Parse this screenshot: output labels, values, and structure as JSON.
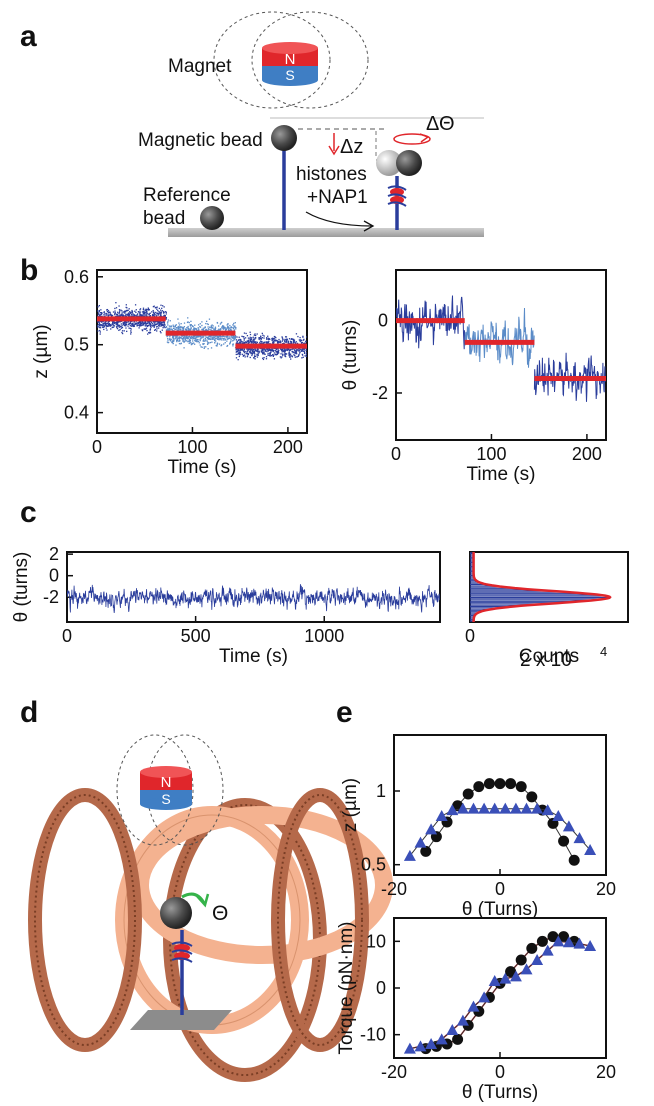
{
  "panels": {
    "a": {
      "letter": "a",
      "magnet_label": "Magnet",
      "magnet_n": "N",
      "magnet_s": "S",
      "magnetic_bead_label": "Magnetic bead",
      "delta_z": "Δz",
      "delta_theta": "ΔΘ",
      "histones_line1": "histones",
      "histones_line2": "+NAP1",
      "reference_line1": "Reference",
      "reference_line2": "bead"
    },
    "b": {
      "letter": "b"
    },
    "c": {
      "letter": "c",
      "count_multiplier": "2 x 10",
      "count_exponent": "4"
    },
    "d": {
      "letter": "d",
      "magnet_n": "N",
      "magnet_s": "S",
      "theta": "Θ"
    },
    "e": {
      "letter": "e"
    }
  },
  "colors": {
    "trace_blue": "#2a3d9c",
    "trace_light": "#5b8cc8",
    "fit_red": "#e0262b",
    "coil": "#b5694a",
    "coil_light": "#f4b290"
  },
  "chart_data": [
    {
      "id": "b-left",
      "type": "scatter",
      "xlabel": "Time (s)",
      "ylabel": "z (µm)",
      "xlim": [
        0,
        220
      ],
      "ylim": [
        0.37,
        0.61
      ],
      "xticks": [
        0,
        100,
        200
      ],
      "yticks": [
        0.4,
        0.5,
        0.6
      ],
      "steps": [
        {
          "x0": 0,
          "x1": 72,
          "y": 0.538
        },
        {
          "x0": 72,
          "x1": 145,
          "y": 0.517
        },
        {
          "x0": 145,
          "x1": 220,
          "y": 0.498
        }
      ],
      "noise": 0.02
    },
    {
      "id": "b-right",
      "type": "line",
      "xlabel": "Time (s)",
      "ylabel": "θ (turns)",
      "xlim": [
        0,
        220
      ],
      "ylim": [
        -3.3,
        1.4
      ],
      "xticks": [
        0,
        100,
        200
      ],
      "yticks": [
        0,
        -2
      ],
      "steps": [
        {
          "x0": 0,
          "x1": 72,
          "y": 0.0
        },
        {
          "x0": 72,
          "x1": 145,
          "y": -0.6
        },
        {
          "x0": 145,
          "x1": 220,
          "y": -1.6
        }
      ],
      "noise": 0.45
    },
    {
      "id": "c-trace",
      "type": "line",
      "xlabel": "Time (s)",
      "ylabel": "θ (turns)",
      "xlim": [
        0,
        1450
      ],
      "ylim": [
        -4.3,
        2.2
      ],
      "xticks": [
        0,
        500,
        1000
      ],
      "yticks": [
        2,
        0,
        -2
      ],
      "mean": -2.0,
      "noise": 0.7
    },
    {
      "id": "c-hist",
      "type": "bar",
      "xlabel": "Counts",
      "xlim": [
        0,
        22000
      ],
      "ylim": [
        -4.3,
        2.2
      ],
      "xticks": [
        0
      ],
      "peak_center": -2.0,
      "peak_width": 0.55,
      "peak_count": 19000
    },
    {
      "id": "e-top",
      "type": "scatter",
      "xlabel": "θ (Turns)",
      "ylabel": "z (µm)",
      "xlim": [
        -20,
        20
      ],
      "ylim": [
        0.43,
        1.38
      ],
      "xticks": [
        -20,
        0,
        20
      ],
      "yticks": [
        1,
        0.5
      ],
      "series": [
        {
          "marker": "circle",
          "x": [
            -14,
            -12,
            -10,
            -8,
            -6,
            -4,
            -2,
            0,
            2,
            4,
            6,
            8,
            10,
            12,
            14
          ],
          "y": [
            0.59,
            0.69,
            0.79,
            0.9,
            0.98,
            1.03,
            1.05,
            1.05,
            1.05,
            1.03,
            0.96,
            0.87,
            0.78,
            0.66,
            0.53
          ]
        },
        {
          "marker": "triangle",
          "x": [
            -17,
            -15,
            -13,
            -11,
            -9,
            -7,
            -5,
            -3,
            -1,
            1,
            3,
            5,
            7,
            9,
            11,
            13,
            15,
            17
          ],
          "y": [
            0.56,
            0.65,
            0.74,
            0.83,
            0.87,
            0.88,
            0.88,
            0.88,
            0.88,
            0.88,
            0.88,
            0.88,
            0.88,
            0.87,
            0.83,
            0.76,
            0.68,
            0.6
          ]
        }
      ]
    },
    {
      "id": "e-bottom",
      "type": "scatter",
      "xlabel": "θ (Turns)",
      "ylabel": "Torque (pN·nm)",
      "xlim": [
        -20,
        20
      ],
      "ylim": [
        -15,
        15
      ],
      "xticks": [
        -20,
        0,
        20
      ],
      "yticks": [
        10,
        0,
        -10
      ],
      "series": [
        {
          "marker": "circle",
          "x": [
            -14,
            -12,
            -10,
            -8,
            -6,
            -4,
            -2,
            0,
            2,
            4,
            6,
            8,
            10,
            12,
            14
          ],
          "y": [
            -13,
            -12.5,
            -12,
            -11,
            -8,
            -5,
            -2,
            1,
            3.5,
            6,
            8.5,
            10,
            11,
            11,
            10
          ]
        },
        {
          "marker": "triangle",
          "x": [
            -17,
            -15,
            -13,
            -11,
            -9,
            -7,
            -5,
            -3,
            -1,
            1,
            3,
            5,
            7,
            9,
            11,
            13,
            15,
            17
          ],
          "y": [
            -13,
            -12.5,
            -12,
            -11,
            -9,
            -7,
            -4,
            -2,
            1.5,
            2,
            2.5,
            4,
            6,
            8,
            10,
            9.8,
            9.5,
            9
          ]
        }
      ]
    }
  ]
}
